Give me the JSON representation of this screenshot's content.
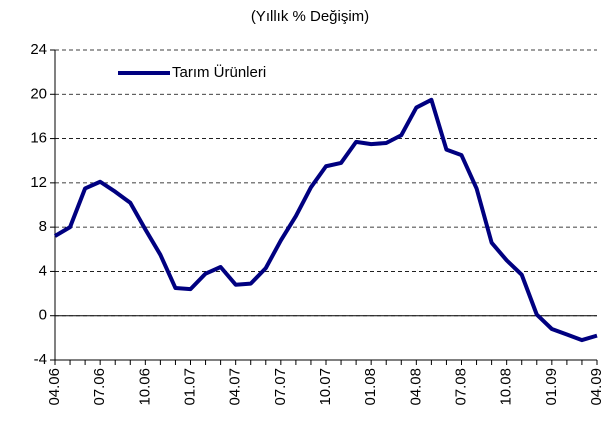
{
  "chart_data": {
    "type": "line",
    "title": "(Yıllık % Değişim)",
    "categories": [
      "04.06",
      null,
      null,
      "07.06",
      null,
      null,
      "10.06",
      null,
      null,
      "01.07",
      null,
      null,
      "04.07",
      null,
      null,
      "07.07",
      null,
      null,
      "10.07",
      null,
      null,
      "01.08",
      null,
      null,
      "04.08",
      null,
      null,
      "07.08",
      null,
      null,
      "10.08",
      null,
      null,
      "01.09",
      null,
      null,
      "04.09"
    ],
    "series": [
      {
        "name": "Tarım Ürünleri",
        "color": "#000080",
        "values": [
          7.2,
          8.0,
          11.5,
          12.1,
          11.2,
          10.2,
          7.8,
          5.5,
          2.5,
          2.4,
          3.8,
          4.4,
          2.8,
          2.9,
          4.3,
          6.8,
          9.0,
          11.6,
          13.5,
          13.8,
          15.7,
          15.5,
          15.6,
          16.3,
          18.8,
          19.5,
          15.0,
          14.5,
          11.5,
          6.6,
          5.0,
          3.7,
          0.1,
          -1.2,
          -1.7,
          -2.2,
          -1.8
        ]
      }
    ],
    "ylim": [
      -4,
      24
    ],
    "yticks": [
      -4,
      0,
      4,
      8,
      12,
      16,
      20,
      24
    ],
    "grid": true,
    "legend": "top-left"
  }
}
